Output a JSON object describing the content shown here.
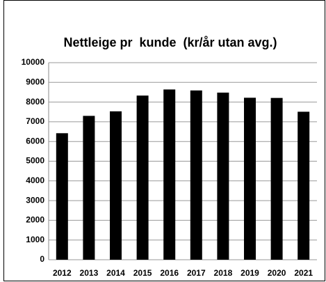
{
  "chart_data": {
    "type": "bar",
    "title": "Nettleige pr  kunde  (kr/år utan avg.)",
    "categories": [
      "2012",
      "2013",
      "2014",
      "2015",
      "2016",
      "2017",
      "2018",
      "2019",
      "2020",
      "2021"
    ],
    "values": [
      6420,
      7300,
      7530,
      8330,
      8640,
      8590,
      8480,
      8220,
      8210,
      7510
    ],
    "color": "#000000",
    "ylim": [
      0,
      10000
    ],
    "yticks": [
      0,
      1000,
      2000,
      3000,
      4000,
      5000,
      6000,
      7000,
      8000,
      9000,
      10000
    ],
    "grid": true
  }
}
